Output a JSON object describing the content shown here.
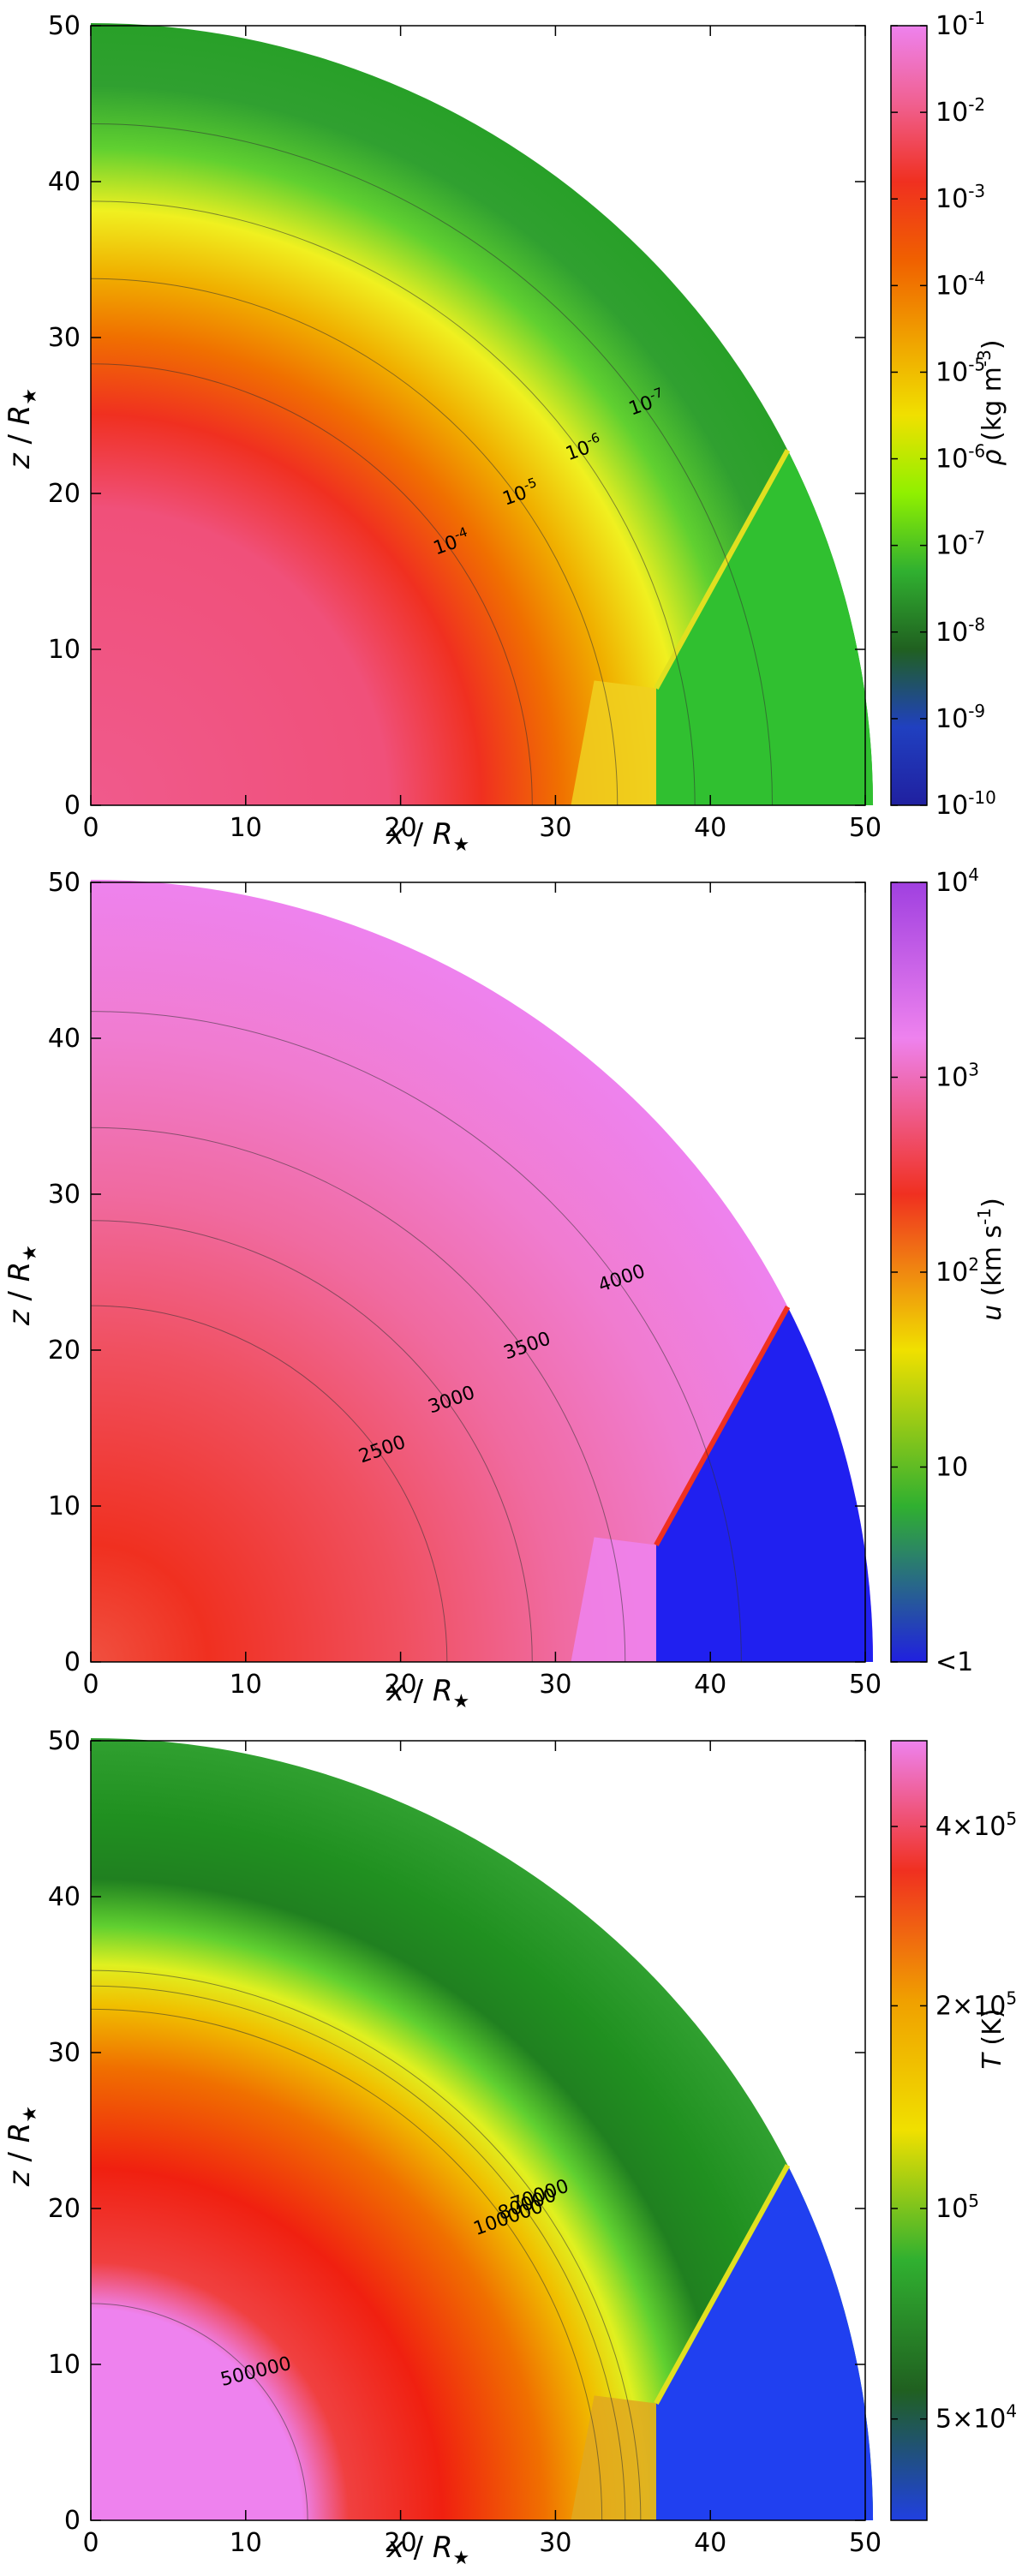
{
  "figure": {
    "panels": [
      {
        "xlabel_var": "x",
        "xlabel_sep": " / ",
        "xlabel_unit": "R",
        "ylabel_var": "z",
        "ylabel_sep": " / ",
        "ylabel_unit": "R",
        "x_ticks": [
          "0",
          "10",
          "20",
          "30",
          "40",
          "50"
        ],
        "y_ticks": [
          "0",
          "10",
          "20",
          "30",
          "40",
          "50"
        ],
        "colorbar": {
          "label_var": "ρ",
          "label_unit": " (kg m",
          "label_exp": "-3",
          "label_close": ")",
          "ticks": [
            {
              "b": "10",
              "e": "-1"
            },
            {
              "b": "10",
              "e": "-2"
            },
            {
              "b": "10",
              "e": "-3"
            },
            {
              "b": "10",
              "e": "-4"
            },
            {
              "b": "10",
              "e": "-5"
            },
            {
              "b": "10",
              "e": "-6"
            },
            {
              "b": "10",
              "e": "-7"
            },
            {
              "b": "10",
              "e": "-8"
            },
            {
              "b": "10",
              "e": "-9"
            },
            {
              "b": "10",
              "e": "-10"
            }
          ],
          "colors": [
            "#ee82ee",
            "#f06090",
            "#f03020",
            "#f06000",
            "#f0a000",
            "#f0e000",
            "#90f000",
            "#30b030",
            "#206020",
            "#2040c0",
            "#2020a0"
          ]
        },
        "contour_labels": [
          {
            "b": "10",
            "e": "-7"
          },
          {
            "b": "10",
            "e": "-6"
          },
          {
            "b": "10",
            "e": "-5"
          },
          {
            "b": "10",
            "e": "-4"
          }
        ]
      },
      {
        "xlabel_var": "x",
        "xlabel_sep": " / ",
        "xlabel_unit": "R",
        "ylabel_var": "z",
        "ylabel_sep": " / ",
        "ylabel_unit": "R",
        "x_ticks": [
          "0",
          "10",
          "20",
          "30",
          "40",
          "50"
        ],
        "y_ticks": [
          "0",
          "10",
          "20",
          "30",
          "40",
          "50"
        ],
        "colorbar": {
          "label_var": "u",
          "label_unit": " (km s",
          "label_exp": "-1",
          "label_close": ")",
          "ticks": [
            {
              "b": "10",
              "e": "4"
            },
            {
              "b": "10",
              "e": "3"
            },
            {
              "b": "10",
              "e": "2"
            },
            {
              "b": "10",
              "e": ""
            },
            {
              "b": "<1",
              "e": ""
            }
          ],
          "colors": [
            "#a040e0",
            "#ee82ee",
            "#f03020",
            "#f0e000",
            "#30b030",
            "#2020e0"
          ]
        },
        "contour_labels": [
          {
            "b": "4000",
            "e": ""
          },
          {
            "b": "3500",
            "e": ""
          },
          {
            "b": "3000",
            "e": ""
          },
          {
            "b": "2500",
            "e": ""
          }
        ]
      },
      {
        "xlabel_var": "x",
        "xlabel_sep": " / ",
        "xlabel_unit": "R",
        "ylabel_var": "z",
        "ylabel_sep": " / ",
        "ylabel_unit": "R",
        "x_ticks": [
          "0",
          "10",
          "20",
          "30",
          "40",
          "50"
        ],
        "y_ticks": [
          "0",
          "10",
          "20",
          "30",
          "40",
          "50"
        ],
        "colorbar": {
          "label_var": "T",
          "label_unit": " (K)",
          "label_exp": "",
          "label_close": "",
          "ticks": [
            {
              "b": "4×10",
              "e": "5"
            },
            {
              "b": "2×10",
              "e": "5"
            },
            {
              "b": "10",
              "e": "5"
            },
            {
              "b": "5×10",
              "e": "4"
            }
          ],
          "colors": [
            "#ee82ee",
            "#f03020",
            "#f0a000",
            "#f0e000",
            "#30b030",
            "#206020",
            "#2040e0"
          ]
        },
        "contour_labels": [
          {
            "b": "70000",
            "e": ""
          },
          {
            "b": "80000",
            "e": ""
          },
          {
            "b": "100000",
            "e": ""
          },
          {
            "b": "500000",
            "e": ""
          }
        ]
      }
    ]
  },
  "chart_data": [
    {
      "type": "heatmap",
      "xlim": [
        0,
        50
      ],
      "ylim": [
        0,
        50
      ],
      "quantity": "density",
      "colorbar_scale": "log",
      "colorbar_range": [
        1e-10,
        0.1
      ],
      "contours": [
        1e-07,
        1e-06,
        1e-05,
        0.0001
      ],
      "contour_radii": [
        44,
        39,
        34,
        28.5
      ],
      "outer_radius": 50.5,
      "cone_boundary_x": 36.5,
      "cone_angle_deg": 27
    },
    {
      "type": "heatmap",
      "xlim": [
        0,
        50
      ],
      "ylim": [
        0,
        50
      ],
      "quantity": "velocity",
      "colorbar_scale": "log",
      "colorbar_range": [
        1,
        10000.0
      ],
      "contours": [
        4000,
        3500,
        3000,
        2500
      ],
      "contour_radii": [
        42,
        34.5,
        28.5,
        23
      ],
      "outer_radius": 50.5,
      "cone_boundary_x": 36.5,
      "cone_angle_deg": 27
    },
    {
      "type": "heatmap",
      "xlim": [
        0,
        50
      ],
      "ylim": [
        0,
        50
      ],
      "quantity": "temperature",
      "colorbar_scale": "log",
      "colorbar_range": [
        30000,
        470000
      ],
      "contours": [
        70000,
        80000,
        100000,
        500000
      ],
      "contour_radii": [
        35.5,
        34.5,
        33,
        14
      ],
      "outer_radius": 50.5,
      "cone_boundary_x": 36.5,
      "cone_angle_deg": 27
    }
  ]
}
